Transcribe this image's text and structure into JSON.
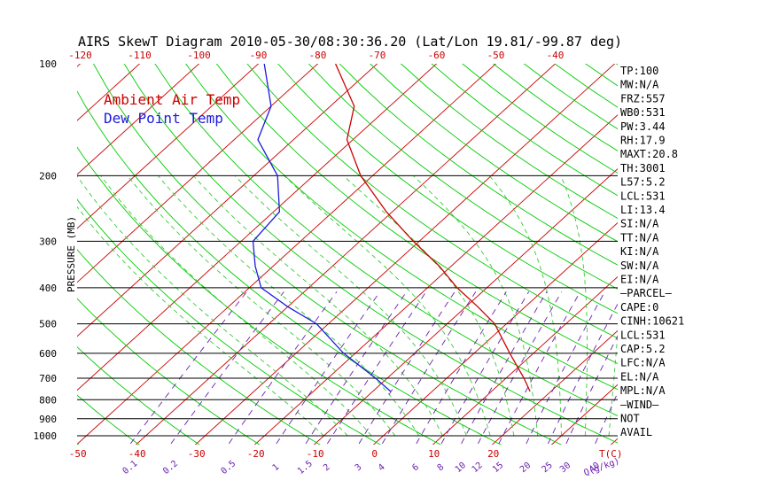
{
  "title": "AIRS SkewT Diagram 2010-05-30/08:30:36.20 (Lat/Lon 19.81/-99.87 deg)",
  "legend": [
    {
      "label": "Ambient Air Temp",
      "color": "#cc0000"
    },
    {
      "label": "Dew Point Temp",
      "color": "#1b1bdd"
    }
  ],
  "colors": {
    "isotherm": "#cc0000",
    "dry_adiabat": "#00cc00",
    "moist_adiabat": "#33cc33",
    "mixing_ratio": "#6a1fb0",
    "isobar": "#000000",
    "temperature": "#cc0000",
    "dewpoint": "#1b1bdd"
  },
  "chart_data": {
    "type": "line",
    "ylabel": "PRESSURE (MB)",
    "y_scale": "log",
    "y_reversed": true,
    "ylim": [
      1050,
      100
    ],
    "pressure_ticks": [
      "100",
      "200",
      "300",
      "400",
      "500",
      "600",
      "700",
      "800",
      "900",
      "1000"
    ],
    "top_temp_ticks": [
      "-120",
      "-110",
      "-100",
      "-90",
      "-80",
      "-70",
      "-60",
      "-50",
      "-40"
    ],
    "bottom_temp_ticks": [
      "-50",
      "-40",
      "-30",
      "-20",
      "-10",
      "0",
      "10",
      "20"
    ],
    "bottom_temp_unit": "T(C)",
    "mixing_ratio_ticks": [
      "0.1",
      "0.2",
      "0.5",
      "1",
      "1.5",
      "2",
      "3",
      "4",
      "6",
      "8",
      "10",
      "12",
      "15",
      "20",
      "25",
      "30",
      "40"
    ],
    "mixing_ratio_unit": "Q(g/kg)",
    "series": [
      {
        "name": "Ambient Air Temp",
        "points": [
          {
            "p": 760,
            "t": 16.5
          },
          {
            "p": 700,
            "t": 13
          },
          {
            "p": 600,
            "t": 6
          },
          {
            "p": 500,
            "t": -2
          },
          {
            "p": 450,
            "t": -8
          },
          {
            "p": 400,
            "t": -15
          },
          {
            "p": 350,
            "t": -22
          },
          {
            "p": 300,
            "t": -31
          },
          {
            "p": 250,
            "t": -41
          },
          {
            "p": 200,
            "t": -52
          },
          {
            "p": 160,
            "t": -61
          },
          {
            "p": 130,
            "t": -66
          },
          {
            "p": 100,
            "t": -77
          }
        ]
      },
      {
        "name": "Dew Point Temp",
        "points": [
          {
            "p": 760,
            "t": -7
          },
          {
            "p": 700,
            "t": -12
          },
          {
            "p": 600,
            "t": -22
          },
          {
            "p": 500,
            "t": -32
          },
          {
            "p": 450,
            "t": -40
          },
          {
            "p": 400,
            "t": -48
          },
          {
            "p": 350,
            "t": -53
          },
          {
            "p": 300,
            "t": -58
          },
          {
            "p": 250,
            "t": -59
          },
          {
            "p": 200,
            "t": -66
          },
          {
            "p": 160,
            "t": -76
          },
          {
            "p": 130,
            "t": -80
          },
          {
            "p": 100,
            "t": -89
          }
        ]
      }
    ]
  },
  "indices": [
    "TP:100",
    "MW:N/A",
    "FRZ:557",
    "WB0:531",
    "PW:3.44",
    "RH:17.9",
    "MAXT:20.8",
    "TH:3001",
    "L57:5.2",
    "LCL:531",
    "LI:13.4",
    "SI:N/A",
    "TT:N/A",
    "KI:N/A",
    "SW:N/A",
    "EI:N/A",
    "—PARCEL—",
    "CAPE:0",
    "CINH:10621",
    "LCL:531",
    "CAP:5.2",
    "LFC:N/A",
    "EL:N/A",
    "MPL:N/A",
    "—WIND—",
    "NOT",
    "AVAIL"
  ]
}
